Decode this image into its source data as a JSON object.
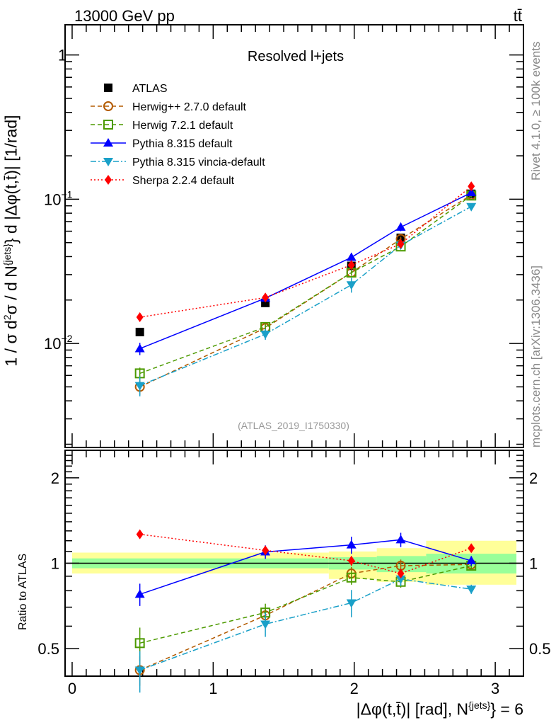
{
  "header": {
    "energy": "13000 GeV pp",
    "process": "tt̄"
  },
  "side_text": {
    "rivet": "Rivet 4.1.0, ≥ 100k events",
    "mcplots": "mcplots.cern.ch [arXiv:1306.3436]"
  },
  "analysis_id": "(ATLAS_2019_I1750330)",
  "colors": {
    "atlas": "#000000",
    "herwigpp": "#b35a00",
    "herwig7": "#4c9a00",
    "pythia": "#0000ff",
    "vincia": "#1aa0c8",
    "sherpa": "#ff0000",
    "band_outer": "#ffff99",
    "band_inner": "#99ff99"
  },
  "chart_data": [
    {
      "type": "line",
      "title": "Resolved l+jets",
      "ylabel_parts": {
        "a": "1 / σ d",
        "b": "2",
        "c": "σ / d N",
        "d": "{jets}",
        "e": "} d |Δφ(t,t̄)| [1/rad]"
      },
      "yscale": "log",
      "ylim": [
        0.0019,
        1.62
      ],
      "xlim": [
        -0.05,
        3.2
      ],
      "yticks": [
        {
          "v": 1,
          "label": "1"
        },
        {
          "v": 0.1,
          "label": "10",
          "exp": "−1"
        },
        {
          "v": 0.01,
          "label": "10",
          "exp": "−2"
        }
      ],
      "legend_position": "top-left",
      "x": [
        0.48,
        1.37,
        1.98,
        2.33,
        2.83
      ],
      "series": [
        {
          "key": "atlas",
          "name": "ATLAS",
          "marker": "square",
          "line": "none",
          "values": [
            0.012,
            0.0191,
            0.0345,
            0.054,
            0.109
          ],
          "err": [
            0.0005,
            0.0008,
            0.0015,
            0.002,
            0.004
          ]
        },
        {
          "key": "herwigpp",
          "name": "Herwig++ 2.7.0 default",
          "marker": "open-circle",
          "line": "dashed",
          "values": [
            0.005,
            0.0128,
            0.031,
            0.053,
            0.107
          ],
          "err": [
            0.0006,
            0.0006,
            0.0015,
            0.002,
            0.003
          ]
        },
        {
          "key": "herwig7",
          "name": "Herwig 7.2.1 default",
          "marker": "open-square",
          "line": "dashed",
          "values": [
            0.0062,
            0.013,
            0.031,
            0.047,
            0.106
          ],
          "err": [
            0.0006,
            0.0006,
            0.0015,
            0.002,
            0.003
          ]
        },
        {
          "key": "pythia",
          "name": "Pythia 8.315 default",
          "marker": "triangle-up",
          "line": "solid",
          "values": [
            0.0092,
            0.0206,
            0.0395,
            0.064,
            0.111
          ],
          "err": [
            0.0009,
            0.001,
            0.003,
            0.004,
            0.004
          ]
        },
        {
          "key": "vincia",
          "name": "Pythia 8.315 vincia-default",
          "marker": "triangle-down",
          "line": "dashdot",
          "values": [
            0.0051,
            0.0116,
            0.0255,
            0.048,
            0.089
          ],
          "err": [
            0.0008,
            0.001,
            0.003,
            0.003,
            0.003
          ]
        },
        {
          "key": "sherpa",
          "name": "Sherpa 2.2.4 default",
          "marker": "diamond",
          "line": "dotted",
          "values": [
            0.0152,
            0.0208,
            0.035,
            0.049,
            0.123
          ],
          "err": [
            0.0005,
            0.0008,
            0.0015,
            0.002,
            0.004
          ]
        }
      ]
    },
    {
      "type": "line",
      "ylabel": "Ratio to ATLAS",
      "xlabel_parts": {
        "a": "|Δφ(t,t̄)| [rad], N",
        "b": "{jets}",
        "c": "} = 6"
      },
      "yscale": "log",
      "ylim": [
        0.4,
        2.5
      ],
      "xlim": [
        -0.05,
        3.2
      ],
      "xticks": [
        "0",
        "1",
        "2",
        "3"
      ],
      "yticks": [
        {
          "v": 2,
          "label": "2"
        },
        {
          "v": 1,
          "label": "1"
        },
        {
          "v": 0.5,
          "label": "0.5"
        }
      ],
      "bands": [
        {
          "x0": 0.0,
          "x1": 1.82,
          "outer": [
            0.92,
            1.09
          ],
          "inner": [
            0.96,
            1.04
          ]
        },
        {
          "x0": 1.82,
          "x1": 2.16,
          "outer": [
            0.88,
            1.1
          ],
          "inner": [
            0.95,
            1.05
          ]
        },
        {
          "x0": 2.16,
          "x1": 2.51,
          "outer": [
            0.86,
            1.13
          ],
          "inner": [
            0.93,
            1.06
          ]
        },
        {
          "x0": 2.51,
          "x1": 3.15,
          "outer": [
            0.84,
            1.2
          ],
          "inner": [
            0.92,
            1.08
          ]
        }
      ],
      "x": [
        0.48,
        1.37,
        1.98,
        2.33,
        2.83
      ],
      "series": [
        {
          "key": "herwigpp",
          "values": [
            0.42,
            0.655,
            0.92,
            0.98,
            0.99
          ],
          "err": [
            0.05,
            0.04,
            0.05,
            0.05,
            0.03
          ]
        },
        {
          "key": "herwig7",
          "values": [
            0.523,
            0.67,
            0.89,
            0.86,
            0.98
          ],
          "err": [
            0.07,
            0.05,
            0.05,
            0.04,
            0.03
          ]
        },
        {
          "key": "pythia",
          "values": [
            0.777,
            1.096,
            1.16,
            1.21,
            1.02
          ],
          "err": [
            0.07,
            0.06,
            0.08,
            0.07,
            0.04
          ]
        },
        {
          "key": "vincia",
          "values": [
            0.42,
            0.61,
            0.725,
            0.88,
            0.81
          ],
          "err": [
            0.07,
            0.06,
            0.08,
            0.05,
            0.03
          ]
        },
        {
          "key": "sherpa",
          "values": [
            1.265,
            1.11,
            1.02,
            0.92,
            1.13
          ],
          "err": [
            0.04,
            0.04,
            0.04,
            0.03,
            0.03
          ]
        }
      ]
    }
  ]
}
